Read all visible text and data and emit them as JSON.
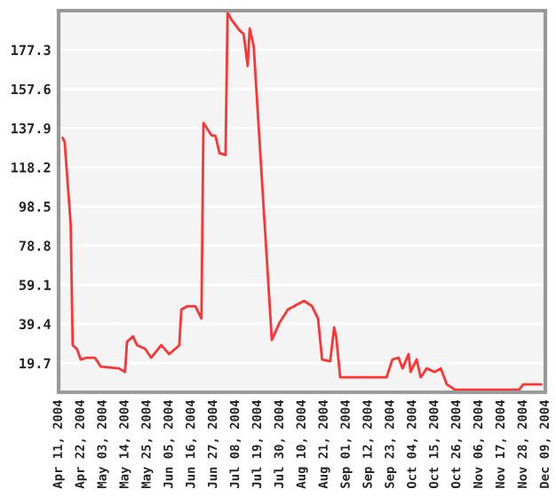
{
  "chart_data": {
    "type": "line",
    "x": [
      "2004-04-13",
      "2004-04-14",
      "2004-04-17",
      "2004-04-18",
      "2004-04-20",
      "2004-04-22",
      "2004-04-25",
      "2004-04-29",
      "2004-05-02",
      "2004-05-11",
      "2004-05-14",
      "2004-05-15",
      "2004-05-18",
      "2004-05-20",
      "2004-05-24",
      "2004-05-27",
      "2004-06-01",
      "2004-06-05",
      "2004-06-10",
      "2004-06-11",
      "2004-06-14",
      "2004-06-18",
      "2004-06-21",
      "2004-06-22",
      "2004-06-26",
      "2004-06-28",
      "2004-06-30",
      "2004-07-03",
      "2004-07-04",
      "2004-07-06",
      "2004-07-10",
      "2004-07-12",
      "2004-07-14",
      "2004-07-15",
      "2004-07-17",
      "2004-07-26",
      "2004-07-30",
      "2004-08-03",
      "2004-08-11",
      "2004-08-15",
      "2004-08-18",
      "2004-08-20",
      "2004-08-24",
      "2004-08-26",
      "2004-08-27",
      "2004-08-29",
      "2004-09-21",
      "2004-09-24",
      "2004-09-27",
      "2004-09-29",
      "2004-10-02",
      "2004-10-03",
      "2004-10-06",
      "2004-10-08",
      "2004-10-11",
      "2004-10-15",
      "2004-10-18",
      "2004-10-21",
      "2004-10-25",
      "2004-11-26",
      "2004-11-28",
      "2004-12-07"
    ],
    "series": [
      {
        "color": "#ff3333",
        "values": [
          133,
          131,
          89.5,
          28.7,
          26.9,
          21.5,
          22.4,
          22.4,
          17.9,
          17,
          15.2,
          30.4,
          33.1,
          28.7,
          26.9,
          22.4,
          28.7,
          24.2,
          28.7,
          46.6,
          48.3,
          48.3,
          42.1,
          140.5,
          134.3,
          134,
          125.3,
          124.4,
          196,
          192.4,
          187,
          185.3,
          169.2,
          188,
          179,
          31.3,
          40.3,
          46.6,
          51,
          48.3,
          42,
          21.5,
          20.6,
          37.6,
          33.1,
          12.5,
          12.5,
          21.5,
          22.4,
          17,
          24.2,
          15.2,
          21.5,
          12.5,
          17,
          15.2,
          17,
          9,
          6.3,
          6.3,
          9,
          9
        ]
      }
    ],
    "xlim": [
      "2004-04-11",
      "2004-12-09"
    ],
    "xticks": [
      {
        "value": "2004-04-11",
        "label": "Apr 11, 2004"
      },
      {
        "value": "2004-04-22",
        "label": "Apr 22, 2004"
      },
      {
        "value": "2004-05-03",
        "label": "May 03, 2004"
      },
      {
        "value": "2004-05-14",
        "label": "May 14, 2004"
      },
      {
        "value": "2004-05-25",
        "label": "May 25, 2004"
      },
      {
        "value": "2004-06-05",
        "label": "Jun 05, 2004"
      },
      {
        "value": "2004-06-16",
        "label": "Jun 16, 2004"
      },
      {
        "value": "2004-06-27",
        "label": "Jun 27, 2004"
      },
      {
        "value": "2004-07-08",
        "label": "Jul 08, 2004"
      },
      {
        "value": "2004-07-19",
        "label": "Jul 19, 2004"
      },
      {
        "value": "2004-07-30",
        "label": "Jul 30, 2004"
      },
      {
        "value": "2004-08-10",
        "label": "Aug 10, 2004"
      },
      {
        "value": "2004-08-21",
        "label": "Aug 21, 2004"
      },
      {
        "value": "2004-09-01",
        "label": "Sep 01, 2004"
      },
      {
        "value": "2004-09-12",
        "label": "Sep 12, 2004"
      },
      {
        "value": "2004-09-23",
        "label": "Sep 23, 2004"
      },
      {
        "value": "2004-10-04",
        "label": "Oct 04, 2004"
      },
      {
        "value": "2004-10-15",
        "label": "Oct 15, 2004"
      },
      {
        "value": "2004-10-26",
        "label": "Oct 26, 2004"
      },
      {
        "value": "2004-11-06",
        "label": "Nov 06, 2004"
      },
      {
        "value": "2004-11-17",
        "label": "Nov 17, 2004"
      },
      {
        "value": "2004-11-28",
        "label": "Nov 28, 2004"
      },
      {
        "value": "2004-12-09",
        "label": "Dec 09, 2004"
      }
    ],
    "ylim": [
      5,
      197
    ],
    "yticks": [
      19.7,
      39.4,
      59.1,
      78.8,
      98.5,
      118.2,
      137.9,
      157.6,
      177.3
    ],
    "grid": "y"
  }
}
